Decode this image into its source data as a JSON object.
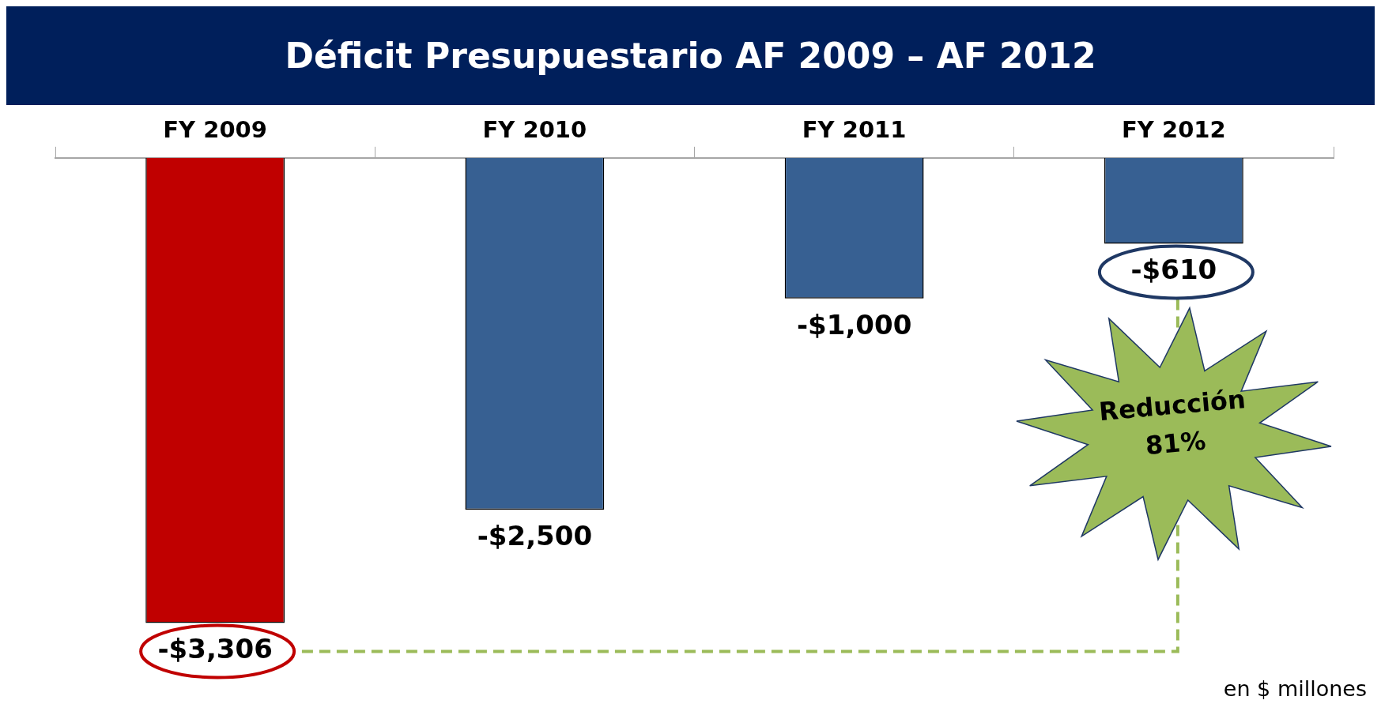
{
  "chart_data": {
    "type": "bar",
    "title": "Déficit Presupuestario AF 2009 – AF 2012",
    "categories": [
      "FY 2009",
      "FY 2010",
      "FY 2011",
      "FY 2012"
    ],
    "values": [
      -3306,
      -2500,
      -1000,
      -610
    ],
    "colors": [
      "#c00000",
      "#376092",
      "#376092",
      "#376092"
    ],
    "value_labels": [
      "-$3,306",
      "-$2,500",
      "-$1,000",
      "-$610"
    ],
    "tick_labels": "x",
    "grid": false,
    "legend": false,
    "annotations": [
      "Reducción 81%",
      "en $ millones"
    ]
  }
}
